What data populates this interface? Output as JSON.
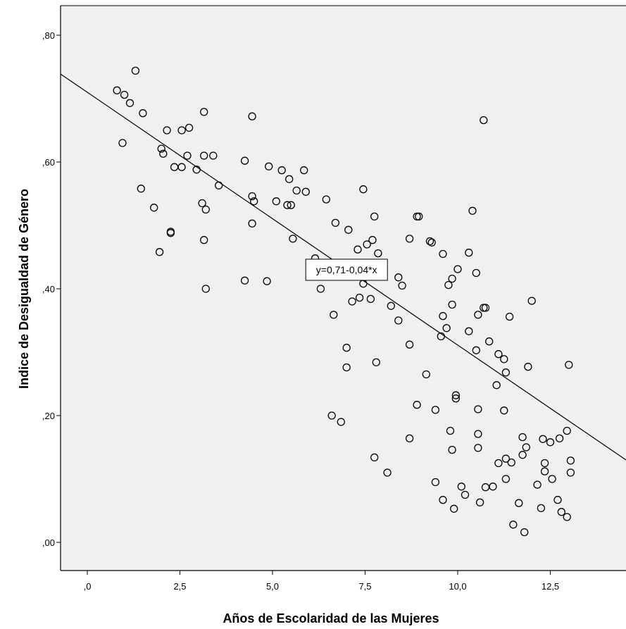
{
  "chart_data": {
    "type": "scatter",
    "xlabel": "Años de Escolaridad de las Mujeres",
    "ylabel": "Indice de Desigualdad de Género",
    "xlim": [
      -0.72,
      14.5
    ],
    "ylim": [
      -0.045,
      0.845
    ],
    "x_ticks": [
      0,
      2.5,
      5,
      7.5,
      10,
      12.5
    ],
    "x_tick_labels": [
      ",0",
      "2,5",
      "5,0",
      "7,5",
      "10,0",
      "12,5"
    ],
    "y_ticks": [
      0,
      0.2,
      0.4,
      0.6,
      0.8
    ],
    "y_tick_labels": [
      ",00",
      ",20",
      ",40",
      ",60",
      ",80"
    ],
    "grid": false,
    "plot_background": "#f0f0f0",
    "point_color": "#000000",
    "fit_line": {
      "intercept": 0.71,
      "slope": -0.04,
      "label": "y=0,71-0,04*x",
      "label_anchor": {
        "x": 7.0,
        "y": 0.43
      }
    },
    "points": [
      [
        0.8,
        0.713
      ],
      [
        1.0,
        0.706
      ],
      [
        1.15,
        0.693
      ],
      [
        1.3,
        0.744
      ],
      [
        1.5,
        0.677
      ],
      [
        0.95,
        0.63
      ],
      [
        1.45,
        0.558
      ],
      [
        1.8,
        0.528
      ],
      [
        1.95,
        0.458
      ],
      [
        2.0,
        0.621
      ],
      [
        2.05,
        0.613
      ],
      [
        2.15,
        0.65
      ],
      [
        2.25,
        0.49
      ],
      [
        2.25,
        0.488
      ],
      [
        2.35,
        0.592
      ],
      [
        2.55,
        0.592
      ],
      [
        2.55,
        0.65
      ],
      [
        2.7,
        0.61
      ],
      [
        2.75,
        0.654
      ],
      [
        2.95,
        0.588
      ],
      [
        3.1,
        0.535
      ],
      [
        3.15,
        0.679
      ],
      [
        3.15,
        0.61
      ],
      [
        3.15,
        0.477
      ],
      [
        3.2,
        0.525
      ],
      [
        3.2,
        0.4
      ],
      [
        3.4,
        0.61
      ],
      [
        3.55,
        0.563
      ],
      [
        4.25,
        0.602
      ],
      [
        4.25,
        0.413
      ],
      [
        4.45,
        0.672
      ],
      [
        4.45,
        0.546
      ],
      [
        4.5,
        0.538
      ],
      [
        4.45,
        0.503
      ],
      [
        4.85,
        0.412
      ],
      [
        4.9,
        0.593
      ],
      [
        5.1,
        0.538
      ],
      [
        5.25,
        0.587
      ],
      [
        5.4,
        0.532
      ],
      [
        5.45,
        0.573
      ],
      [
        5.5,
        0.532
      ],
      [
        5.55,
        0.479
      ],
      [
        5.65,
        0.555
      ],
      [
        5.9,
        0.553
      ],
      [
        5.85,
        0.587
      ],
      [
        6.15,
        0.448
      ],
      [
        6.3,
        0.4
      ],
      [
        6.45,
        0.541
      ],
      [
        6.6,
        0.2
      ],
      [
        6.7,
        0.504
      ],
      [
        6.65,
        0.359
      ],
      [
        6.85,
        0.19
      ],
      [
        7.0,
        0.276
      ],
      [
        7.0,
        0.307
      ],
      [
        7.05,
        0.493
      ],
      [
        7.15,
        0.38
      ],
      [
        7.3,
        0.462
      ],
      [
        7.35,
        0.386
      ],
      [
        7.45,
        0.408
      ],
      [
        7.45,
        0.557
      ],
      [
        7.55,
        0.47
      ],
      [
        7.65,
        0.384
      ],
      [
        7.7,
        0.477
      ],
      [
        7.75,
        0.514
      ],
      [
        7.75,
        0.134
      ],
      [
        7.8,
        0.284
      ],
      [
        7.85,
        0.456
      ],
      [
        8.1,
        0.11
      ],
      [
        8.2,
        0.373
      ],
      [
        8.4,
        0.418
      ],
      [
        8.4,
        0.35
      ],
      [
        8.5,
        0.405
      ],
      [
        8.7,
        0.479
      ],
      [
        8.7,
        0.312
      ],
      [
        8.7,
        0.164
      ],
      [
        8.9,
        0.514
      ],
      [
        8.95,
        0.514
      ],
      [
        8.9,
        0.217
      ],
      [
        9.15,
        0.265
      ],
      [
        9.25,
        0.475
      ],
      [
        9.3,
        0.473
      ],
      [
        9.4,
        0.209
      ],
      [
        9.4,
        0.095
      ],
      [
        9.55,
        0.325
      ],
      [
        9.6,
        0.357
      ],
      [
        9.6,
        0.455
      ],
      [
        9.6,
        0.067
      ],
      [
        9.7,
        0.338
      ],
      [
        9.75,
        0.406
      ],
      [
        9.85,
        0.416
      ],
      [
        9.85,
        0.375
      ],
      [
        9.85,
        0.146
      ],
      [
        9.8,
        0.176
      ],
      [
        9.9,
        0.053
      ],
      [
        9.95,
        0.227
      ],
      [
        9.95,
        0.232
      ],
      [
        10.0,
        0.431
      ],
      [
        10.1,
        0.088
      ],
      [
        10.2,
        0.075
      ],
      [
        10.3,
        0.333
      ],
      [
        10.3,
        0.457
      ],
      [
        10.4,
        0.523
      ],
      [
        10.5,
        0.425
      ],
      [
        10.5,
        0.303
      ],
      [
        10.55,
        0.149
      ],
      [
        10.55,
        0.171
      ],
      [
        10.55,
        0.21
      ],
      [
        10.6,
        0.063
      ],
      [
        10.55,
        0.359
      ],
      [
        10.7,
        0.666
      ],
      [
        10.7,
        0.37
      ],
      [
        10.75,
        0.37
      ],
      [
        10.75,
        0.087
      ],
      [
        10.85,
        0.317
      ],
      [
        10.95,
        0.088
      ],
      [
        11.05,
        0.248
      ],
      [
        11.1,
        0.297
      ],
      [
        11.1,
        0.125
      ],
      [
        11.25,
        0.208
      ],
      [
        11.25,
        0.289
      ],
      [
        11.3,
        0.268
      ],
      [
        11.3,
        0.132
      ],
      [
        11.3,
        0.1
      ],
      [
        11.4,
        0.356
      ],
      [
        11.45,
        0.126
      ],
      [
        11.5,
        0.028
      ],
      [
        11.65,
        0.062
      ],
      [
        11.75,
        0.166
      ],
      [
        11.75,
        0.138
      ],
      [
        11.8,
        0.016
      ],
      [
        11.85,
        0.15
      ],
      [
        11.9,
        0.277
      ],
      [
        12.0,
        0.381
      ],
      [
        12.15,
        0.091
      ],
      [
        12.25,
        0.054
      ],
      [
        12.3,
        0.163
      ],
      [
        12.35,
        0.112
      ],
      [
        12.35,
        0.125
      ],
      [
        12.5,
        0.158
      ],
      [
        12.55,
        0.1
      ],
      [
        12.7,
        0.067
      ],
      [
        12.75,
        0.164
      ],
      [
        12.8,
        0.048
      ],
      [
        12.95,
        0.176
      ],
      [
        12.95,
        0.04
      ],
      [
        13.0,
        0.28
      ],
      [
        13.05,
        0.129
      ],
      [
        13.05,
        0.11
      ]
    ]
  }
}
